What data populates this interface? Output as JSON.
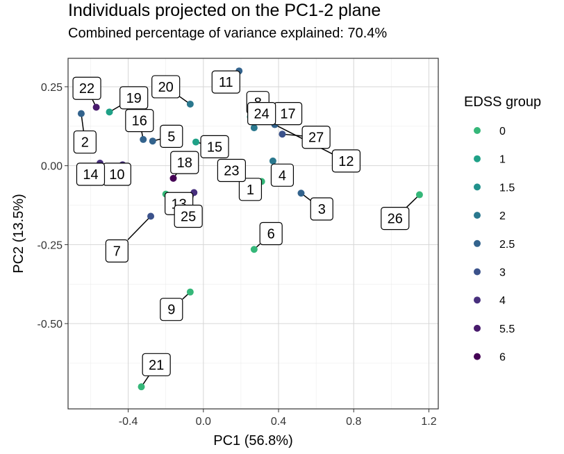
{
  "chart_data": {
    "type": "scatter",
    "title": "Individuals projected on the PC1-2 plane",
    "subtitle": "Combined percentage of variance explained: 70.4%",
    "xlabel": "PC1 (56.8%)",
    "ylabel": "PC2 (13.5%)",
    "xlim": [
      -0.72,
      1.25
    ],
    "ylim": [
      -0.77,
      0.34
    ],
    "xticks": [
      -0.4,
      0.0,
      0.4,
      0.8,
      1.2
    ],
    "xtick_labels": [
      "-0.4",
      "0.0",
      "0.4",
      "0.8",
      "1.2"
    ],
    "yticks": [
      0.25,
      0.0,
      -0.25,
      -0.5
    ],
    "ytick_labels": [
      "0.25",
      "0.00",
      "-0.25",
      "-0.50"
    ],
    "grid": true,
    "legend": {
      "title": "EDSS group",
      "position": "right",
      "entries": [
        {
          "label": "0",
          "color": "#35b779"
        },
        {
          "label": "1",
          "color": "#1fa187"
        },
        {
          "label": "1.5",
          "color": "#21918c"
        },
        {
          "label": "2",
          "color": "#2a788e"
        },
        {
          "label": "2.5",
          "color": "#33638d"
        },
        {
          "label": "3",
          "color": "#3b528b"
        },
        {
          "label": "4",
          "color": "#472f7d"
        },
        {
          "label": "5.5",
          "color": "#481a6c"
        },
        {
          "label": "6",
          "color": "#440154"
        }
      ]
    },
    "points": [
      {
        "label": "1",
        "x": 0.31,
        "y": -0.05,
        "group": "0"
      },
      {
        "label": "2",
        "x": -0.65,
        "y": 0.165,
        "group": "2.5"
      },
      {
        "label": "3",
        "x": 0.52,
        "y": -0.087,
        "group": "2.5"
      },
      {
        "label": "4",
        "x": 0.37,
        "y": 0.015,
        "group": "2"
      },
      {
        "label": "5",
        "x": -0.27,
        "y": 0.078,
        "group": "2.5"
      },
      {
        "label": "6",
        "x": 0.27,
        "y": -0.265,
        "group": "0"
      },
      {
        "label": "7",
        "x": -0.28,
        "y": -0.16,
        "group": "3"
      },
      {
        "label": "8",
        "x": 0.25,
        "y": 0.155,
        "group": "1"
      },
      {
        "label": "9",
        "x": -0.07,
        "y": -0.4,
        "group": "0"
      },
      {
        "label": "10",
        "x": -0.43,
        "y": 0.003,
        "group": "4"
      },
      {
        "label": "11",
        "x": 0.19,
        "y": 0.3,
        "group": "2.5"
      },
      {
        "label": "12",
        "x": 0.38,
        "y": 0.13,
        "group": "2.5"
      },
      {
        "label": "13",
        "x": -0.2,
        "y": -0.09,
        "group": "0"
      },
      {
        "label": "14",
        "x": -0.55,
        "y": 0.008,
        "group": "4"
      },
      {
        "label": "15",
        "x": -0.04,
        "y": 0.075,
        "group": "1"
      },
      {
        "label": "16",
        "x": -0.32,
        "y": 0.083,
        "group": "2.5"
      },
      {
        "label": "17",
        "x": 0.35,
        "y": 0.14,
        "group": "1.5"
      },
      {
        "label": "18",
        "x": -0.16,
        "y": -0.04,
        "group": "6"
      },
      {
        "label": "19",
        "x": -0.5,
        "y": 0.17,
        "group": "1"
      },
      {
        "label": "20",
        "x": -0.07,
        "y": 0.195,
        "group": "2"
      },
      {
        "label": "21",
        "x": -0.33,
        "y": -0.7,
        "group": "0"
      },
      {
        "label": "22",
        "x": -0.57,
        "y": 0.185,
        "group": "5.5"
      },
      {
        "label": "23",
        "x": 0.11,
        "y": 0.01,
        "group": "1"
      },
      {
        "label": "24",
        "x": 0.27,
        "y": 0.12,
        "group": "2"
      },
      {
        "label": "25",
        "x": -0.05,
        "y": -0.085,
        "group": "4"
      },
      {
        "label": "26",
        "x": 1.15,
        "y": -0.092,
        "group": "0"
      },
      {
        "label": "27",
        "x": 0.42,
        "y": 0.1,
        "group": "3"
      }
    ]
  }
}
